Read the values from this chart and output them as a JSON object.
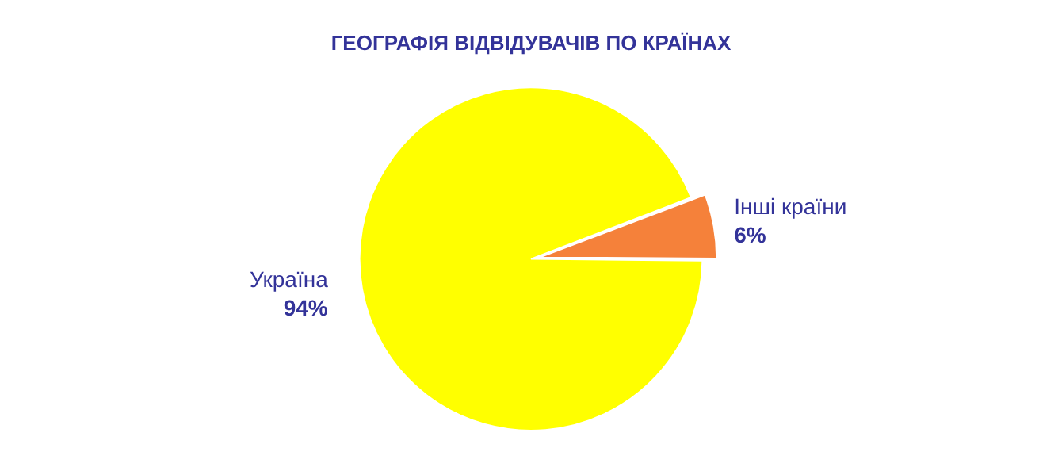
{
  "chart_data": {
    "type": "pie",
    "title": "ГЕОГРАФІЯ ВІДВІДУВАЧІВ ПО КРАЇНАХ",
    "categories": [
      "Україна",
      "Інші країни"
    ],
    "values": [
      94,
      6
    ],
    "value_labels": [
      "94%",
      "6%"
    ],
    "colors": [
      "#ffff00",
      "#f5813a"
    ],
    "legend": false
  }
}
